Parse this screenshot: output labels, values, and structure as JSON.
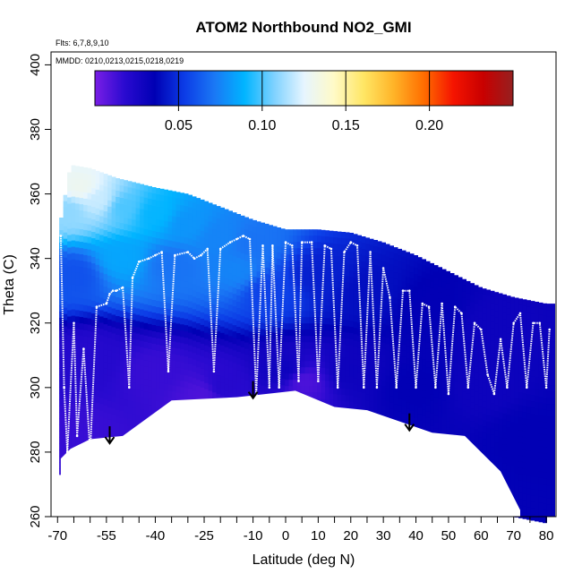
{
  "chart_data": {
    "type": "heatmap",
    "title": "ATOM2 Northbound NO2_GMI",
    "subtitle_flights": "Flts: 6,7,8,9,10",
    "subtitle_dates": "MMDD: 0210,0213,0215,0218,0219",
    "xlabel": "Latitude (deg N)",
    "ylabel": "Theta (C)",
    "xlim": [
      -72,
      83
    ],
    "ylim": [
      260,
      404
    ],
    "x_tick_labels": [
      "-70",
      "-55",
      "-40",
      "-25",
      "-10",
      "0",
      "10",
      "20",
      "30",
      "40",
      "50",
      "60",
      "70",
      "80"
    ],
    "y_tick_labels": [
      "260",
      "280",
      "300",
      "320",
      "340",
      "360",
      "380",
      "400"
    ],
    "colorbar": {
      "range": [
        0,
        0.25
      ],
      "tick_values": [
        0.05,
        0.1,
        0.15,
        0.2
      ],
      "tick_labels": [
        "0.05",
        "0.10",
        "0.15",
        "0.20"
      ],
      "colors": [
        "#7a1ee6",
        "#2a0ad0",
        "#0000b4",
        "#0c3ce6",
        "#1a78f5",
        "#00b4ff",
        "#7fd2ff",
        "#e6f5ff",
        "#fffac8",
        "#ffe664",
        "#ffb428",
        "#ff6e00",
        "#f51400",
        "#c80000",
        "#962020"
      ]
    },
    "surface_bottom": [
      [
        -69,
        278
      ],
      [
        -66,
        281
      ],
      [
        -60,
        284
      ],
      [
        -50,
        285
      ],
      [
        -35,
        296
      ],
      [
        -15,
        297
      ],
      [
        3,
        299
      ],
      [
        15,
        294
      ],
      [
        25,
        293
      ],
      [
        45,
        286
      ],
      [
        55,
        285
      ],
      [
        66,
        274
      ],
      [
        72,
        262
      ]
    ],
    "curtain_top": [
      [
        -69,
        352
      ],
      [
        -66,
        369
      ],
      [
        -60,
        368
      ],
      [
        -52,
        365
      ],
      [
        -40,
        362
      ],
      [
        -30,
        360
      ],
      [
        -20,
        356
      ],
      [
        -10,
        352
      ],
      [
        0,
        349
      ],
      [
        10,
        349
      ],
      [
        20,
        348
      ],
      [
        30,
        345
      ],
      [
        40,
        341
      ],
      [
        50,
        336
      ],
      [
        60,
        331
      ],
      [
        70,
        328
      ],
      [
        80,
        326
      ]
    ],
    "field_points": [
      {
        "lat": -67,
        "theta": 355,
        "no2": 0.11
      },
      {
        "lat": -63,
        "theta": 362,
        "no2": 0.13
      },
      {
        "lat": -57,
        "theta": 358,
        "no2": 0.12
      },
      {
        "lat": -50,
        "theta": 356,
        "no2": 0.1
      },
      {
        "lat": -40,
        "theta": 354,
        "no2": 0.09
      },
      {
        "lat": -30,
        "theta": 351,
        "no2": 0.08
      },
      {
        "lat": -20,
        "theta": 347,
        "no2": 0.075
      },
      {
        "lat": -10,
        "theta": 345,
        "no2": 0.07
      },
      {
        "lat": -65,
        "theta": 335,
        "no2": 0.06
      },
      {
        "lat": -50,
        "theta": 340,
        "no2": 0.085
      },
      {
        "lat": -35,
        "theta": 338,
        "no2": 0.07
      },
      {
        "lat": -15,
        "theta": 336,
        "no2": 0.075
      },
      {
        "lat": -5,
        "theta": 330,
        "no2": 0.055
      },
      {
        "lat": 10,
        "theta": 335,
        "no2": 0.045
      },
      {
        "lat": 25,
        "theta": 330,
        "no2": 0.04
      },
      {
        "lat": 45,
        "theta": 325,
        "no2": 0.035
      },
      {
        "lat": 65,
        "theta": 320,
        "no2": 0.03
      },
      {
        "lat": -60,
        "theta": 310,
        "no2": 0.02
      },
      {
        "lat": -40,
        "theta": 305,
        "no2": 0.015
      },
      {
        "lat": -20,
        "theta": 300,
        "no2": 0.02
      },
      {
        "lat": 0,
        "theta": 305,
        "no2": 0.03
      },
      {
        "lat": 20,
        "theta": 305,
        "no2": 0.03
      },
      {
        "lat": 40,
        "theta": 300,
        "no2": 0.035
      },
      {
        "lat": 60,
        "theta": 300,
        "no2": 0.03
      },
      {
        "lat": 75,
        "theta": 285,
        "no2": 0.035
      },
      {
        "lat": -62,
        "theta": 285,
        "no2": 0.015
      },
      {
        "lat": 5,
        "theta": 302,
        "no2": 0.01
      },
      {
        "lat": -25,
        "theta": 298,
        "no2": 0.01
      }
    ],
    "flight_track": [
      [
        -69,
        347
      ],
      [
        -68,
        300
      ],
      [
        -67,
        280
      ],
      [
        -65,
        320
      ],
      [
        -64,
        285
      ],
      [
        -62,
        312
      ],
      [
        -60,
        280
      ],
      [
        -58,
        325
      ],
      [
        -55,
        326
      ],
      [
        -54,
        329
      ],
      [
        -53,
        330
      ],
      [
        -52,
        330
      ],
      [
        -50,
        331
      ],
      [
        -48,
        300
      ],
      [
        -47,
        334
      ],
      [
        -45,
        339
      ],
      [
        -42,
        340
      ],
      [
        -40,
        341
      ],
      [
        -38,
        342
      ],
      [
        -36,
        305
      ],
      [
        -34,
        341
      ],
      [
        -30,
        342
      ],
      [
        -28,
        340
      ],
      [
        -26,
        341
      ],
      [
        -24,
        343
      ],
      [
        -22,
        305
      ],
      [
        -20,
        343
      ],
      [
        -17,
        345
      ],
      [
        -15,
        346
      ],
      [
        -13,
        347
      ],
      [
        -11,
        346
      ],
      [
        -9,
        298
      ],
      [
        -7,
        344
      ],
      [
        -5,
        300
      ],
      [
        -4,
        344
      ],
      [
        -2,
        300
      ],
      [
        0,
        345
      ],
      [
        2,
        344
      ],
      [
        4,
        302
      ],
      [
        5,
        345
      ],
      [
        8,
        345
      ],
      [
        10,
        302
      ],
      [
        12,
        344
      ],
      [
        14,
        343
      ],
      [
        16,
        300
      ],
      [
        18,
        342
      ],
      [
        20,
        345
      ],
      [
        22,
        344
      ],
      [
        24,
        300
      ],
      [
        26,
        342
      ],
      [
        28,
        300
      ],
      [
        30,
        337
      ],
      [
        32,
        328
      ],
      [
        34,
        300
      ],
      [
        36,
        330
      ],
      [
        38,
        330
      ],
      [
        40,
        300
      ],
      [
        42,
        326
      ],
      [
        44,
        325
      ],
      [
        46,
        300
      ],
      [
        48,
        326
      ],
      [
        50,
        298
      ],
      [
        52,
        325
      ],
      [
        54,
        323
      ],
      [
        56,
        300
      ],
      [
        58,
        320
      ],
      [
        60,
        318
      ],
      [
        62,
        304
      ],
      [
        64,
        298
      ],
      [
        66,
        315
      ],
      [
        68,
        300
      ],
      [
        70,
        320
      ],
      [
        72,
        323
      ],
      [
        74,
        300
      ],
      [
        76,
        320
      ],
      [
        78,
        320
      ],
      [
        80,
        300
      ],
      [
        81,
        318
      ]
    ],
    "annotation_arrows": [
      {
        "lat": -54,
        "theta_from": 288,
        "theta_to": 283
      },
      {
        "lat": -10,
        "theta_from": 302,
        "theta_to": 297
      },
      {
        "lat": 38,
        "theta_from": 292,
        "theta_to": 287
      }
    ]
  }
}
